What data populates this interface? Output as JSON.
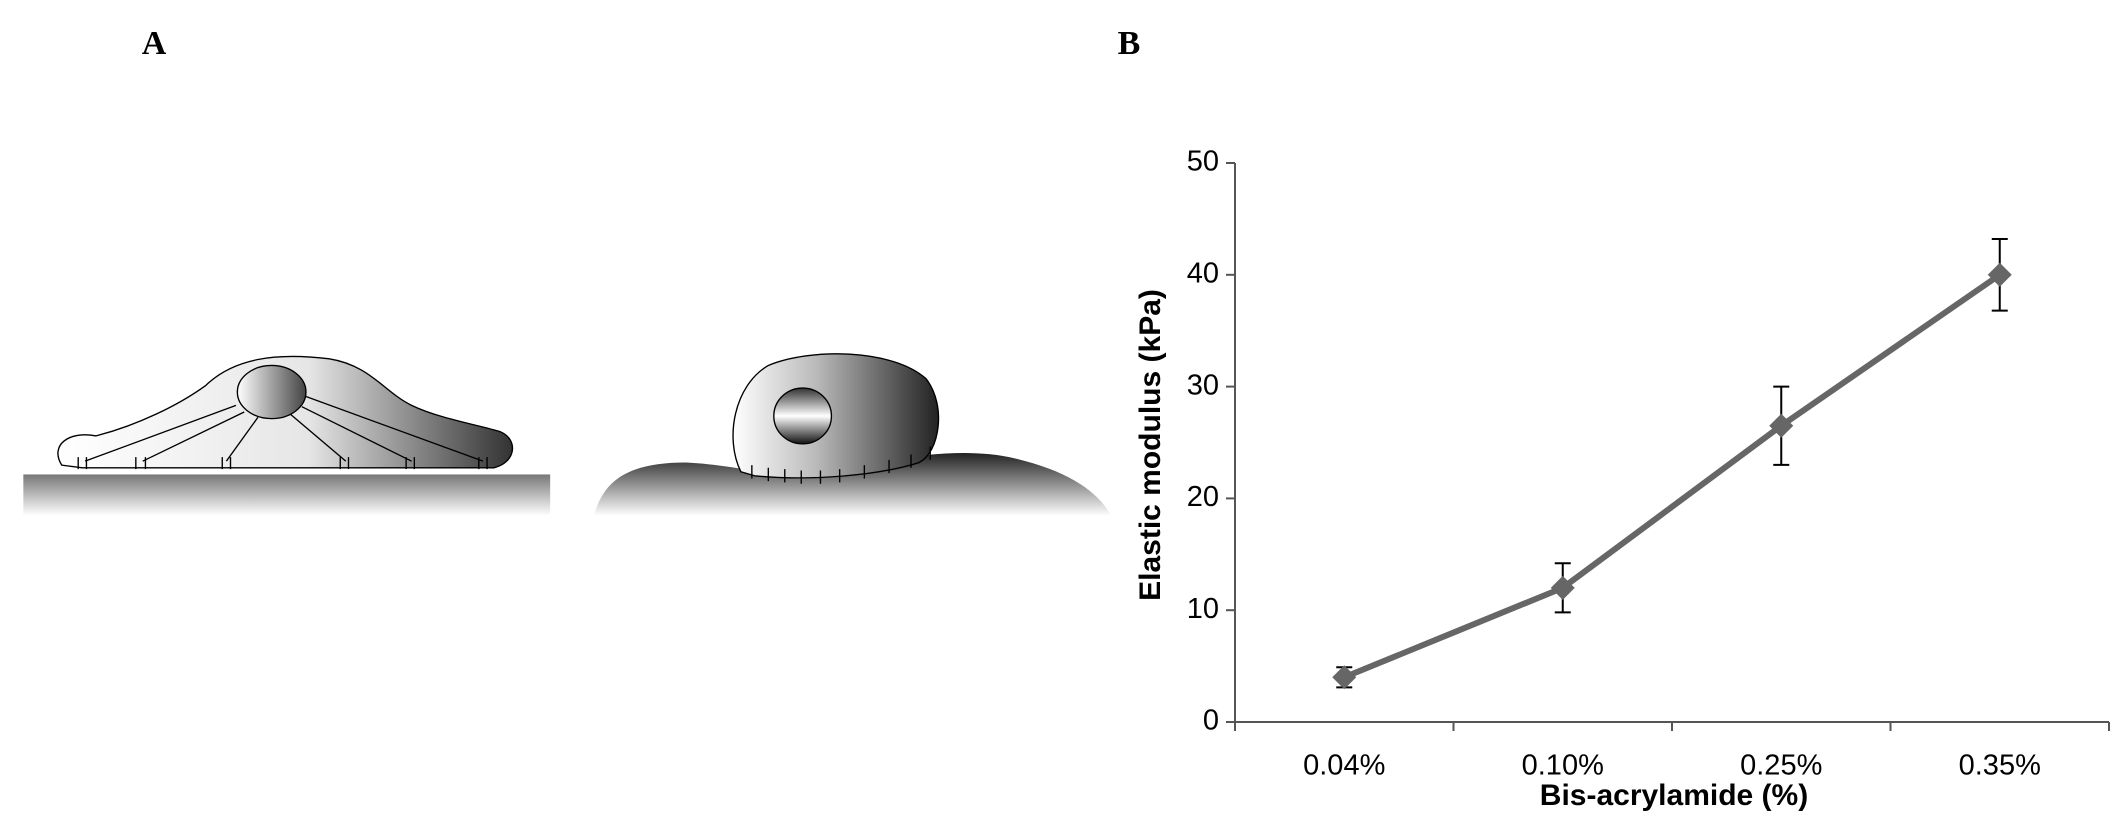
{
  "figure": {
    "panel_labels": [
      "A",
      "B"
    ]
  },
  "chart_data": {
    "type": "line",
    "x_label": "Bis-acrylamide (%)",
    "y_label": "Elastic modulus  (kPa)",
    "categories": [
      "0.04%",
      "0.10%",
      "0.25%",
      "0.35%"
    ],
    "series": [
      {
        "color": "#666666",
        "values": [
          4,
          12,
          26.5,
          40
        ],
        "errors": [
          0.9,
          2.2,
          3.5,
          3.2
        ]
      }
    ],
    "ylim": [
      0,
      50
    ],
    "yticks": [
      0,
      10,
      20,
      30,
      40,
      50
    ]
  }
}
